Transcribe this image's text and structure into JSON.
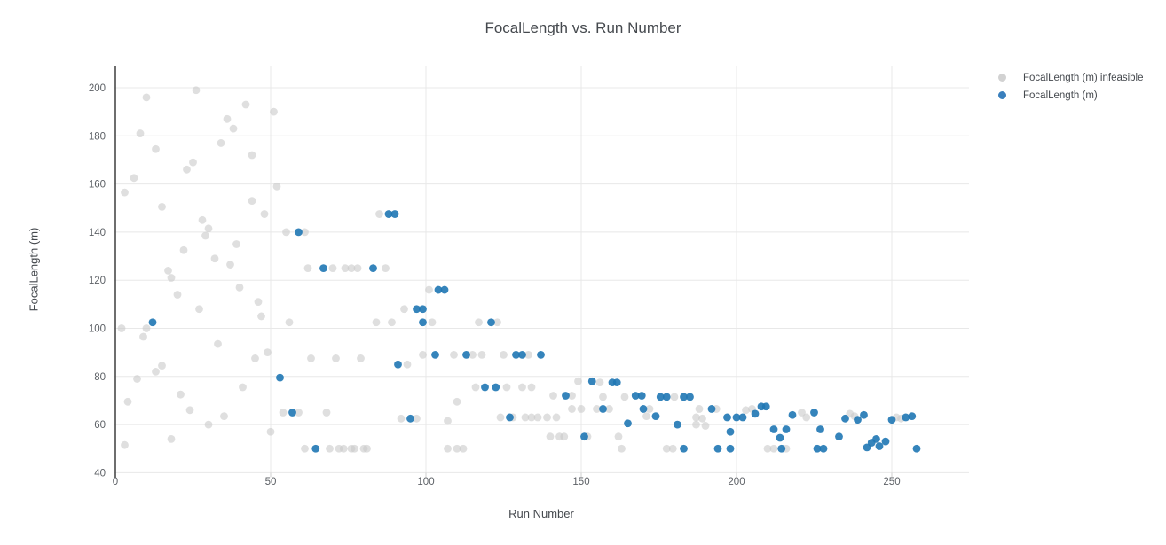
{
  "title": "FocalLength vs. Run Number",
  "legend": {
    "items": [
      {
        "label": "FocalLength (m) infeasible",
        "color": "#d2d2d2"
      },
      {
        "label": "FocalLength (m)",
        "color": "#3a80bd"
      }
    ]
  },
  "axes": {
    "x_title": "Run Number",
    "y_title": "FocalLength (m)"
  },
  "colors": {
    "infeasible_marker": "#c9c9c9",
    "feasible_marker": "#1f77b4",
    "gridline": "#e8e8e8",
    "zeroline": "#4a4a4a",
    "tick_text": "#5d6166"
  },
  "chart_data": {
    "type": "scatter",
    "title": "FocalLength vs. Run Number",
    "xlabel": "Run Number",
    "ylabel": "FocalLength (m)",
    "xlim": [
      -1,
      275
    ],
    "ylim": [
      40,
      209
    ],
    "x_ticks": [
      0,
      50,
      100,
      150,
      200,
      250
    ],
    "y_ticks": [
      40,
      60,
      80,
      100,
      120,
      140,
      160,
      180,
      200
    ],
    "grid": true,
    "zeroline_x": 0,
    "legend_position": "top-right",
    "series": [
      {
        "name": "FocalLength (m) infeasible",
        "color": "#c9c9c9",
        "opacity": 0.6,
        "points": [
          [
            2,
            100
          ],
          [
            3,
            156.5
          ],
          [
            3,
            51.5
          ],
          [
            4,
            69.5
          ],
          [
            6,
            162.5
          ],
          [
            7,
            79
          ],
          [
            8,
            181
          ],
          [
            9,
            96.5
          ],
          [
            10,
            196
          ],
          [
            10,
            100
          ],
          [
            13,
            174.5
          ],
          [
            13,
            82
          ],
          [
            15,
            150.5
          ],
          [
            15,
            84.5
          ],
          [
            17,
            124
          ],
          [
            18,
            121
          ],
          [
            18,
            54
          ],
          [
            20,
            114
          ],
          [
            21,
            72.5
          ],
          [
            22,
            132.5
          ],
          [
            23,
            166
          ],
          [
            24,
            66
          ],
          [
            25,
            169
          ],
          [
            26,
            199
          ],
          [
            27,
            108
          ],
          [
            28,
            145
          ],
          [
            29,
            138.5
          ],
          [
            30,
            141.5
          ],
          [
            30,
            60
          ],
          [
            32,
            129
          ],
          [
            33,
            93.5
          ],
          [
            34,
            177
          ],
          [
            35,
            63.5
          ],
          [
            36,
            187
          ],
          [
            37,
            126.5
          ],
          [
            38,
            183
          ],
          [
            39,
            135
          ],
          [
            40,
            117
          ],
          [
            41,
            75.5
          ],
          [
            42,
            193
          ],
          [
            44,
            172
          ],
          [
            44,
            153
          ],
          [
            45,
            87.5
          ],
          [
            46,
            111
          ],
          [
            47,
            105
          ],
          [
            48,
            147.5
          ],
          [
            49,
            90
          ],
          [
            50,
            57
          ],
          [
            51,
            190
          ],
          [
            52,
            159
          ],
          [
            54,
            65
          ],
          [
            55,
            140
          ],
          [
            56,
            102.5
          ],
          [
            59,
            65
          ],
          [
            61,
            140
          ],
          [
            61,
            50
          ],
          [
            62,
            125
          ],
          [
            63,
            87.5
          ],
          [
            68,
            65
          ],
          [
            69,
            50
          ],
          [
            70,
            125
          ],
          [
            71,
            87.5
          ],
          [
            72,
            50
          ],
          [
            73.5,
            50
          ],
          [
            74,
            125
          ],
          [
            76,
            125
          ],
          [
            76,
            50
          ],
          [
            77,
            50
          ],
          [
            78,
            125
          ],
          [
            79,
            87.5
          ],
          [
            80,
            50
          ],
          [
            81,
            50
          ],
          [
            84,
            102.5
          ],
          [
            85,
            147.5
          ],
          [
            87,
            125
          ],
          [
            89,
            102.5
          ],
          [
            92,
            62.5
          ],
          [
            93,
            108
          ],
          [
            94,
            85
          ],
          [
            97,
            62.5
          ],
          [
            99,
            89
          ],
          [
            101,
            116
          ],
          [
            102,
            102.5
          ],
          [
            107,
            61.5
          ],
          [
            107,
            50
          ],
          [
            109,
            89
          ],
          [
            110,
            69.5
          ],
          [
            110,
            50
          ],
          [
            112,
            50
          ],
          [
            115,
            89
          ],
          [
            116,
            75.5
          ],
          [
            117,
            102.5
          ],
          [
            118,
            89
          ],
          [
            123,
            102.5
          ],
          [
            124,
            63
          ],
          [
            125,
            89
          ],
          [
            126,
            75.5
          ],
          [
            128,
            63
          ],
          [
            131,
            75.5
          ],
          [
            132,
            63
          ],
          [
            133,
            89
          ],
          [
            134,
            75.5
          ],
          [
            134,
            63
          ],
          [
            136,
            63
          ],
          [
            139,
            63
          ],
          [
            140,
            55
          ],
          [
            141,
            72
          ],
          [
            142,
            63
          ],
          [
            143,
            55
          ],
          [
            144.5,
            55
          ],
          [
            147,
            72
          ],
          [
            147,
            66.5
          ],
          [
            149,
            78
          ],
          [
            150,
            66.5
          ],
          [
            152,
            55
          ],
          [
            155,
            66.5
          ],
          [
            156,
            77.5
          ],
          [
            157,
            71.5
          ],
          [
            159,
            66.5
          ],
          [
            162,
            55
          ],
          [
            163,
            50
          ],
          [
            164,
            71.5
          ],
          [
            171,
            63.5
          ],
          [
            172,
            66.5
          ],
          [
            177.5,
            50
          ],
          [
            179.5,
            50
          ],
          [
            180,
            71.5
          ],
          [
            187,
            63
          ],
          [
            187,
            60
          ],
          [
            188,
            66.5
          ],
          [
            189,
            62.5
          ],
          [
            190,
            59.5
          ],
          [
            193.5,
            66.5
          ],
          [
            203,
            66
          ],
          [
            205,
            66.5
          ],
          [
            210,
            50
          ],
          [
            212,
            50
          ],
          [
            216,
            50
          ],
          [
            221,
            65
          ],
          [
            222.5,
            63
          ],
          [
            236.5,
            64.5
          ],
          [
            238,
            63.5
          ],
          [
            251.5,
            63
          ],
          [
            253,
            62.5
          ]
        ]
      },
      {
        "name": "FocalLength (m)",
        "color": "#1f77b4",
        "opacity": 0.9,
        "points": [
          [
            12,
            102.5
          ],
          [
            53,
            79.5
          ],
          [
            57,
            65
          ],
          [
            59,
            140
          ],
          [
            64.5,
            50
          ],
          [
            67,
            125
          ],
          [
            83,
            125
          ],
          [
            88,
            147.5
          ],
          [
            90,
            147.5
          ],
          [
            91,
            85
          ],
          [
            95,
            62.5
          ],
          [
            97,
            108
          ],
          [
            99,
            108
          ],
          [
            99,
            102.5
          ],
          [
            103,
            89
          ],
          [
            104,
            116
          ],
          [
            106,
            116
          ],
          [
            113,
            89
          ],
          [
            119,
            75.5
          ],
          [
            121,
            102.5
          ],
          [
            122.5,
            75.5
          ],
          [
            127,
            63
          ],
          [
            129,
            89
          ],
          [
            131,
            89
          ],
          [
            137,
            89
          ],
          [
            145,
            72
          ],
          [
            151,
            55
          ],
          [
            153.5,
            78
          ],
          [
            157,
            66.5
          ],
          [
            160,
            77.5
          ],
          [
            161.5,
            77.5
          ],
          [
            165,
            60.5
          ],
          [
            167.5,
            72
          ],
          [
            169.5,
            72
          ],
          [
            170,
            66.5
          ],
          [
            174,
            63.5
          ],
          [
            175.5,
            71.5
          ],
          [
            177.5,
            71.5
          ],
          [
            181,
            60
          ],
          [
            183,
            71.5
          ],
          [
            183,
            50
          ],
          [
            185,
            71.5
          ],
          [
            192,
            66.5
          ],
          [
            194,
            50
          ],
          [
            197,
            63
          ],
          [
            198,
            57
          ],
          [
            198,
            50
          ],
          [
            200,
            63
          ],
          [
            202,
            63
          ],
          [
            206,
            64.5
          ],
          [
            208,
            67.5
          ],
          [
            209.5,
            67.5
          ],
          [
            212,
            58
          ],
          [
            214,
            54.5
          ],
          [
            214.5,
            50
          ],
          [
            216,
            58
          ],
          [
            218,
            64
          ],
          [
            225,
            65
          ],
          [
            226,
            50
          ],
          [
            227,
            58
          ],
          [
            228,
            50
          ],
          [
            233,
            55
          ],
          [
            235,
            62.5
          ],
          [
            239,
            62
          ],
          [
            241,
            64
          ],
          [
            242,
            50.5
          ],
          [
            243.5,
            52.5
          ],
          [
            245,
            54
          ],
          [
            246,
            51
          ],
          [
            248,
            53
          ],
          [
            250,
            62
          ],
          [
            254.5,
            63
          ],
          [
            256.5,
            63.5
          ],
          [
            258,
            50
          ]
        ]
      }
    ]
  }
}
